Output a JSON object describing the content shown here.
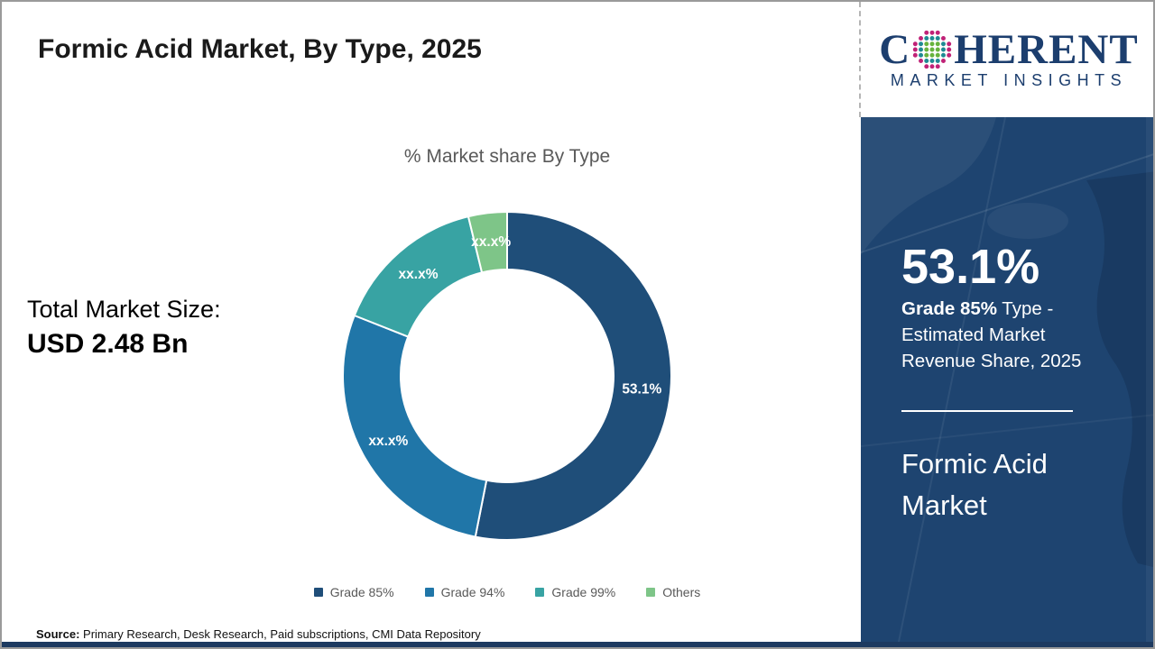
{
  "header": {
    "title": "Formic Acid Market, By Type, 2025"
  },
  "logo": {
    "name_pre": "C",
    "name_post": "HERENT",
    "subtext": "MARKET INSIGHTS",
    "navy": "#1c3e6e",
    "globe_dot_colors": {
      "outer": "#c02277",
      "mid": "#1f8a93",
      "inner": "#68b33e"
    }
  },
  "left_stat": {
    "label": "Total Market Size:",
    "value": "USD 2.48 Bn"
  },
  "chart_data": {
    "type": "pie",
    "donut": true,
    "title": "% Market share By Type",
    "categories": [
      "Grade 85%",
      "Grade 94%",
      "Grade 99%",
      "Others"
    ],
    "values": [
      53.1,
      27.9,
      15.2,
      3.8
    ],
    "display_labels": [
      "53.1%",
      "xx.x%",
      "xx.x%",
      "xx.x%"
    ],
    "colors": [
      "#1F4E79",
      "#2076A8",
      "#38A3A3",
      "#7EC588"
    ],
    "legend_position": "bottom",
    "label_color": "#ffffff",
    "title_color": "#595959"
  },
  "sidebar": {
    "bg_color": "#1e4470",
    "stat_value": "53.1%",
    "desc_bold": "Grade 85%",
    "desc_rest": " Type - Estimated Market Revenue Share, 2025",
    "product": "Formic Acid Market"
  },
  "footer": {
    "source_label": "Source:",
    "source_text": " Primary Research, Desk Research, Paid subscriptions, CMI Data Repository"
  }
}
